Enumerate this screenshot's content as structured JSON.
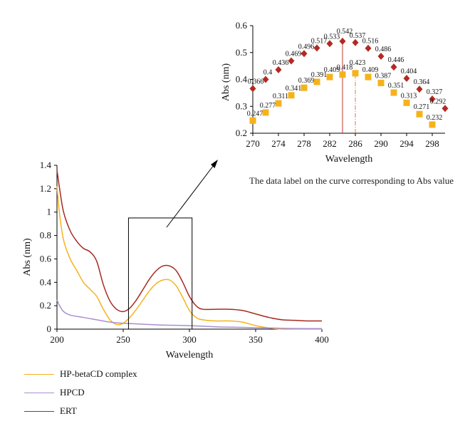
{
  "chart_data": [
    {
      "type": "line",
      "xlabel": "Wavelength",
      "ylabel": "Abs (nm)",
      "xlim": [
        200,
        400
      ],
      "ylim": [
        0,
        1.4
      ],
      "xticks": [
        "200",
        "250",
        "300",
        "350",
        "400"
      ],
      "yticks": [
        "0",
        "0.2",
        "0.4",
        "0.6",
        "0.8",
        "1",
        "1.2",
        "1.4"
      ],
      "grid": false,
      "legend_position": "below",
      "series": [
        {
          "name": "HP-betaCD complex",
          "color": "#f5b31b",
          "x": [
            200,
            202,
            205,
            210,
            215,
            220,
            225,
            230,
            235,
            240,
            245,
            250,
            255,
            260,
            265,
            270,
            275,
            280,
            285,
            290,
            295,
            300,
            305,
            310,
            320,
            330,
            340,
            350,
            360,
            370,
            380,
            390,
            400
          ],
          "y": [
            1.22,
            0.98,
            0.76,
            0.6,
            0.5,
            0.4,
            0.34,
            0.28,
            0.17,
            0.08,
            0.04,
            0.05,
            0.1,
            0.17,
            0.25,
            0.33,
            0.39,
            0.42,
            0.42,
            0.37,
            0.27,
            0.16,
            0.1,
            0.08,
            0.07,
            0.07,
            0.06,
            0.03,
            0.01,
            0.0,
            0.0,
            0.0,
            0.0
          ]
        },
        {
          "name": "HPCD",
          "color": "#a98fd1",
          "x": [
            200,
            202,
            205,
            210,
            220,
            230,
            240,
            250,
            260,
            280,
            300,
            320,
            340,
            360,
            380,
            400
          ],
          "y": [
            0.25,
            0.2,
            0.15,
            0.12,
            0.1,
            0.08,
            0.06,
            0.05,
            0.045,
            0.035,
            0.03,
            0.02,
            0.015,
            0.01,
            0.005,
            0.005
          ]
        },
        {
          "name": "ERT",
          "color": "#a52a22",
          "x": [
            200,
            202,
            205,
            210,
            215,
            220,
            225,
            230,
            235,
            240,
            245,
            250,
            255,
            260,
            265,
            270,
            275,
            280,
            285,
            290,
            295,
            300,
            305,
            310,
            320,
            330,
            340,
            350,
            360,
            370,
            380,
            390,
            400
          ],
          "y": [
            1.36,
            1.2,
            1.0,
            0.84,
            0.75,
            0.69,
            0.66,
            0.58,
            0.38,
            0.24,
            0.17,
            0.15,
            0.18,
            0.25,
            0.34,
            0.43,
            0.5,
            0.54,
            0.54,
            0.5,
            0.4,
            0.28,
            0.2,
            0.17,
            0.17,
            0.17,
            0.16,
            0.13,
            0.1,
            0.08,
            0.075,
            0.07,
            0.07
          ]
        }
      ]
    },
    {
      "type": "scatter",
      "xlabel": "Wavelength",
      "ylabel": "Abs (nm)",
      "xlim": [
        270,
        300
      ],
      "ylim": [
        0.2,
        0.6
      ],
      "xticks": [
        "270",
        "274",
        "278",
        "282",
        "286",
        "290",
        "294",
        "298"
      ],
      "yticks": [
        "0.2",
        "0.3",
        "0.4",
        "0.5",
        "0.6"
      ],
      "grid": false,
      "series": [
        {
          "color": "#b22a22",
          "marker": "diamond",
          "x": [
            270,
            272,
            274,
            276,
            278,
            280,
            282,
            284,
            286,
            288,
            290,
            292,
            294,
            296,
            298,
            300
          ],
          "y": [
            0.366,
            0.4,
            0.436,
            0.469,
            0.496,
            0.517,
            0.533,
            0.542,
            0.537,
            0.516,
            0.486,
            0.446,
            0.404,
            0.364,
            0.327,
            0.292
          ],
          "labels": [
            "0.366",
            "0.4",
            "0.436",
            "0.469",
            "0.496",
            "0.517",
            "0.533",
            "0.542",
            "0.537",
            "0.516",
            "0.486",
            "0.446",
            "0.404",
            "0.364",
            "0.327",
            "0.292"
          ]
        },
        {
          "color": "#f5b31b",
          "marker": "square",
          "x": [
            270,
            272,
            274,
            276,
            278,
            280,
            282,
            284,
            286,
            288,
            290,
            292,
            294,
            296,
            298
          ],
          "y": [
            0.247,
            0.277,
            0.311,
            0.341,
            0.369,
            0.391,
            0.409,
            0.418,
            0.423,
            0.409,
            0.387,
            0.351,
            0.313,
            0.271,
            0.232
          ],
          "labels": [
            "0.247",
            "0.277",
            "0.311",
            "0.341",
            "0.369",
            "0.391",
            "0.409",
            "0.418",
            "0.423",
            "0.409",
            "0.387",
            "0.351",
            "0.313",
            "0.271",
            "0.232"
          ]
        }
      ],
      "peak_lines": [
        {
          "x": 284,
          "color": "#c0392b",
          "style": "solid"
        },
        {
          "x": 286,
          "color": "#e8763a",
          "style": "dashdot"
        }
      ],
      "highlight_label_colors": {
        "0.542": "#4a6cd4",
        "0.423": "#e8651b"
      }
    }
  ],
  "annotation": {
    "text": "The data label on the curve corresponding to Abs value"
  },
  "legend": [
    {
      "label": "HP-betaCD complex",
      "color": "#f5b31b"
    },
    {
      "label": "HPCD",
      "color": "#a98fd1"
    },
    {
      "label": "ERT",
      "color": "#a52a22"
    }
  ]
}
